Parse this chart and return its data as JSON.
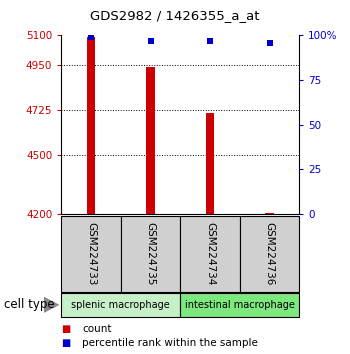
{
  "title": "GDS2982 / 1426355_a_at",
  "samples": [
    "GSM224733",
    "GSM224735",
    "GSM224734",
    "GSM224736"
  ],
  "bar_values": [
    5090,
    4940,
    4710,
    4207
  ],
  "percentile_values": [
    99,
    97,
    97,
    96
  ],
  "ylim_left": [
    4200,
    5100
  ],
  "ylim_right": [
    0,
    100
  ],
  "yticks_left": [
    4200,
    4500,
    4725,
    4950,
    5100
  ],
  "yticks_right": [
    0,
    25,
    50,
    75,
    100
  ],
  "bar_color": "#cc0000",
  "dot_color": "#0000cc",
  "groups": [
    {
      "label": "splenic macrophage",
      "indices": [
        0,
        1
      ],
      "color": "#c8f0c8"
    },
    {
      "label": "intestinal macrophage",
      "indices": [
        2,
        3
      ],
      "color": "#7de87d"
    }
  ],
  "cell_type_label": "cell type",
  "legend_count_label": "count",
  "legend_percentile_label": "percentile rank within the sample",
  "left_tick_color": "#cc0000",
  "right_tick_color": "#0000cc",
  "sample_box_color": "#d0d0d0",
  "sample_box_edge": "#000000",
  "bar_width": 0.15
}
